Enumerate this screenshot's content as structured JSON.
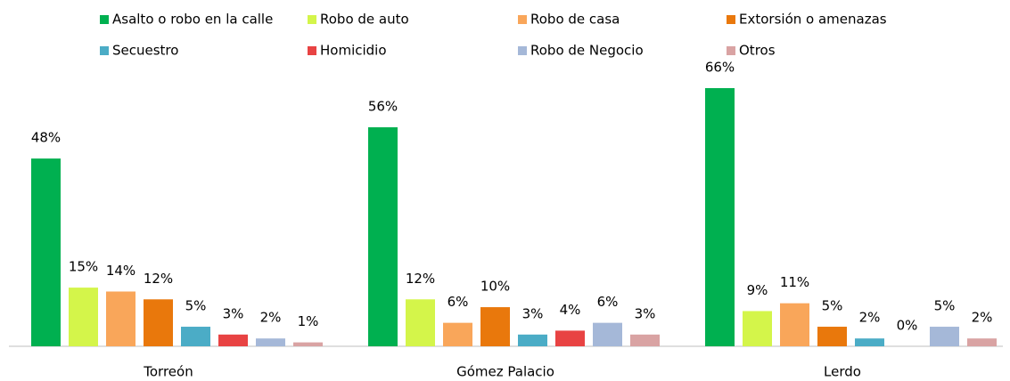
{
  "chart_data": {
    "type": "bar",
    "categories": [
      "Torreón",
      "Gómez Palacio",
      "Lerdo"
    ],
    "series": [
      {
        "name": "Asalto o robo en la calle",
        "color": "#00b050",
        "values": [
          48,
          56,
          66
        ],
        "value_labels": [
          "48%",
          "56%",
          "66%"
        ]
      },
      {
        "name": "Robo de auto",
        "color": "#d4f54a",
        "values": [
          15,
          12,
          9
        ],
        "value_labels": [
          "15%",
          "12%",
          "9%"
        ]
      },
      {
        "name": "Robo de casa",
        "color": "#f9a65a",
        "values": [
          14,
          6,
          11
        ],
        "value_labels": [
          "14%",
          "6%",
          "11%"
        ]
      },
      {
        "name": "Extorsión o amenazas",
        "color": "#e9780c",
        "values": [
          12,
          10,
          5
        ],
        "value_labels": [
          "12%",
          "10%",
          "5%"
        ]
      },
      {
        "name": "Secuestro",
        "color": "#4bacc6",
        "values": [
          5,
          3,
          2
        ],
        "value_labels": [
          "5%",
          "3%",
          "2%"
        ]
      },
      {
        "name": "Homicidio",
        "color": "#e84343",
        "values": [
          3,
          4,
          0
        ],
        "value_labels": [
          "3%",
          "4%",
          "0%"
        ]
      },
      {
        "name": "Robo de Negocio",
        "color": "#a5b8d8",
        "values": [
          2,
          6,
          5
        ],
        "value_labels": [
          "2%",
          "6%",
          "5%"
        ]
      },
      {
        "name": "Otros",
        "color": "#d9a3a3",
        "values": [
          1,
          3,
          2
        ],
        "value_labels": [
          "1%",
          "3%",
          "2%"
        ]
      }
    ],
    "legend": "top"
  }
}
